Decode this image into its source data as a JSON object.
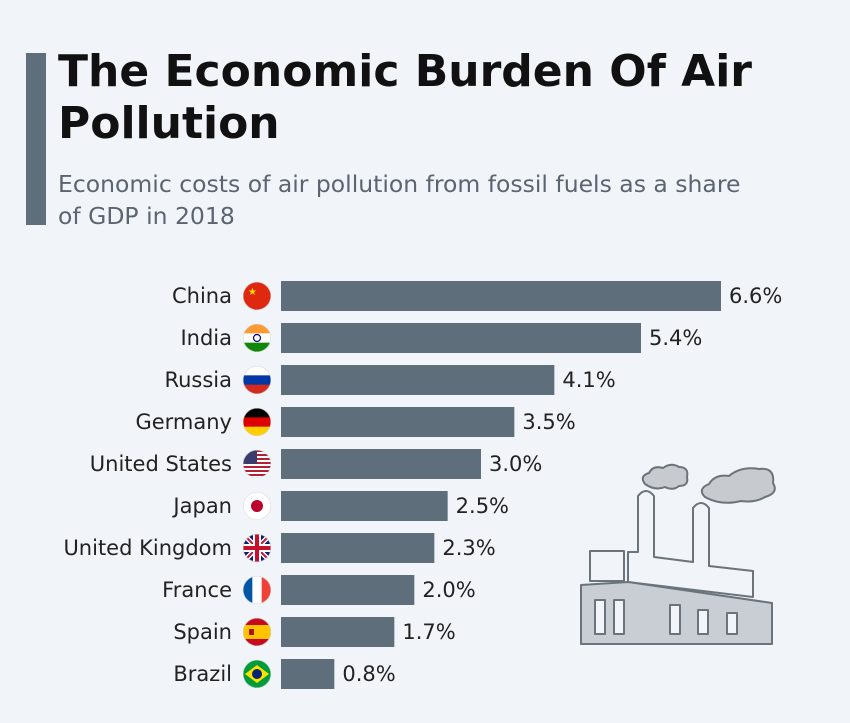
{
  "title": "The Economic Burden Of Air Pollution",
  "subtitle": "Economic costs of air pollution from fossil fuels as a share of GDP in 2018",
  "colors": {
    "bar": "#5f6e7b",
    "accent": "#5f6e7b",
    "background": "#f1f4f9"
  },
  "chart_data": {
    "type": "bar",
    "orientation": "horizontal",
    "title": "The Economic Burden Of Air Pollution",
    "subtitle": "Economic costs of air pollution from fossil fuels as a share of GDP in 2018",
    "categories": [
      "China",
      "India",
      "Russia",
      "Germany",
      "United States",
      "Japan",
      "United Kingdom",
      "France",
      "Spain",
      "Brazil"
    ],
    "values": [
      6.6,
      5.4,
      4.1,
      3.5,
      3.0,
      2.5,
      2.3,
      2.0,
      1.7,
      0.8
    ],
    "labels": [
      "6.6%",
      "5.4%",
      "4.1%",
      "3.5%",
      "3.0%",
      "2.5%",
      "2.3%",
      "2.0%",
      "1.7%",
      "0.8%"
    ],
    "flags": [
      "china-flag",
      "india-flag",
      "russia-flag",
      "germany-flag",
      "usa-flag",
      "japan-flag",
      "uk-flag",
      "france-flag",
      "spain-flag",
      "brazil-flag"
    ],
    "unit": "%",
    "grid": false,
    "legend": "none"
  }
}
